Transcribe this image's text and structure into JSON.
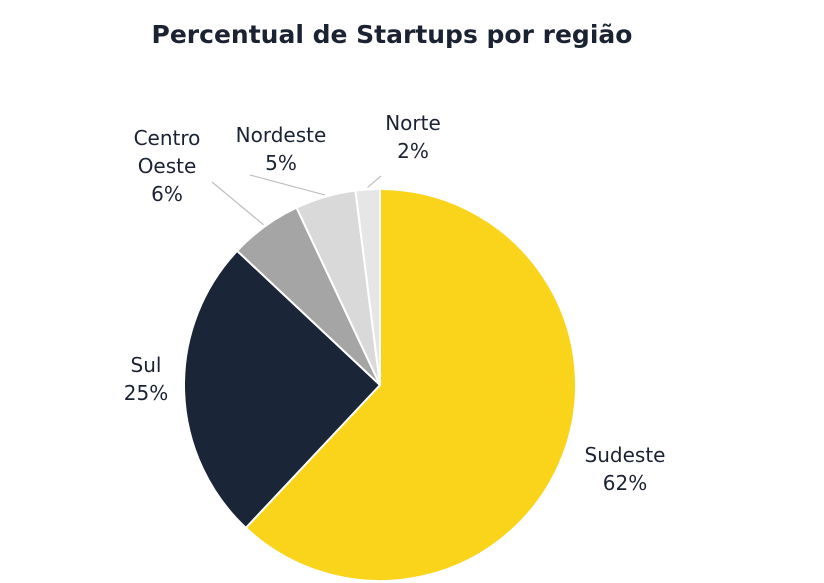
{
  "chart_data": {
    "type": "pie",
    "title": "Percentual de Startups por região",
    "slices": [
      {
        "label_lines": [
          "Sudeste"
        ],
        "value": 62,
        "value_label": "62%",
        "color": "#fad31b"
      },
      {
        "label_lines": [
          "Sul"
        ],
        "value": 25,
        "value_label": "25%",
        "color": "#1b2538"
      },
      {
        "label_lines": [
          "Centro",
          "Oeste"
        ],
        "value": 6,
        "value_label": "6%",
        "color": "#a5a5a5"
      },
      {
        "label_lines": [
          "Nordeste"
        ],
        "value": 5,
        "value_label": "5%",
        "color": "#d9d9d9"
      },
      {
        "label_lines": [
          "Norte"
        ],
        "value": 2,
        "value_label": "2%",
        "color": "#e6e6e6"
      }
    ],
    "start_angle": "12 o'clock",
    "direction": "clockwise",
    "legend": "none"
  }
}
